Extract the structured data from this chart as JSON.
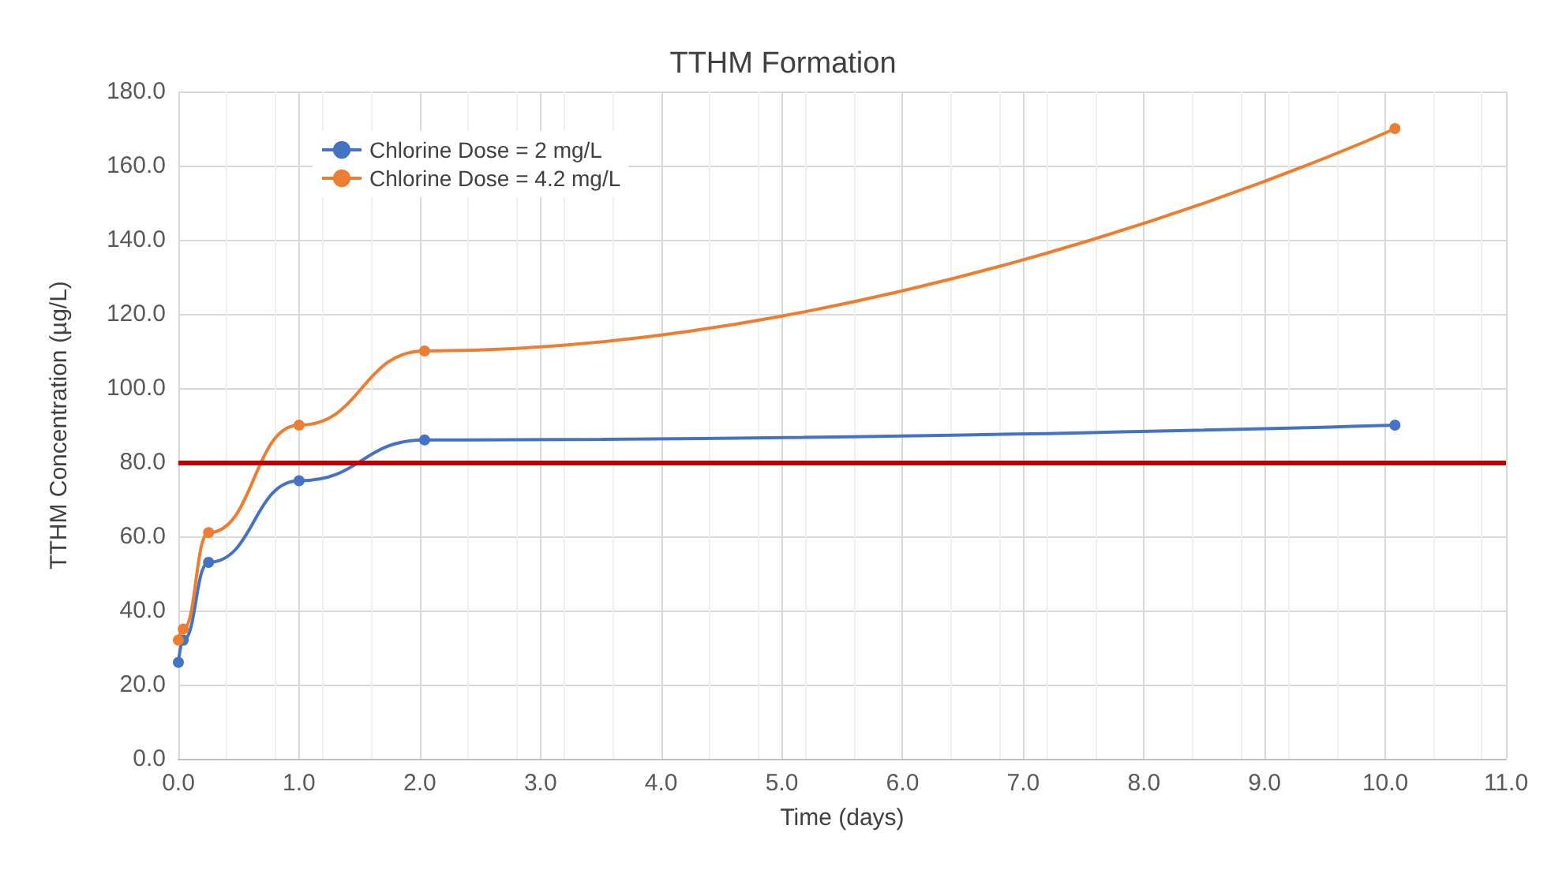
{
  "chart_data": {
    "type": "line",
    "title": "TTHM Formation",
    "xlabel": "Time (days)",
    "ylabel": "TTHM Concentration (µg/L)",
    "series": [
      {
        "name": "Chlorine Dose = 2 mg/L",
        "color": "#4472c4",
        "x": [
          0,
          0.04,
          0.25,
          1.0,
          2.04,
          10.08
        ],
        "values": [
          26,
          32,
          53,
          75,
          86,
          90
        ]
      },
      {
        "name": "Chlorine Dose = 4.2 mg/L",
        "color": "#ed7d31",
        "x": [
          0,
          0.04,
          0.25,
          1.0,
          2.04,
          10.08
        ],
        "values": [
          32,
          35,
          61,
          90,
          110,
          170
        ]
      }
    ],
    "xlim": [
      0,
      11
    ],
    "xticks": [
      {
        "value": 0,
        "label": "0.0"
      },
      {
        "value": 1,
        "label": "1.0"
      },
      {
        "value": 2,
        "label": "2.0"
      },
      {
        "value": 3,
        "label": "3.0"
      },
      {
        "value": 4,
        "label": "4.0"
      },
      {
        "value": 5,
        "label": "5.0"
      },
      {
        "value": 6,
        "label": "6.0"
      },
      {
        "value": 7,
        "label": "7.0"
      },
      {
        "value": 8,
        "label": "8.0"
      },
      {
        "value": 9,
        "label": "9.0"
      },
      {
        "value": 10,
        "label": "10.0"
      },
      {
        "value": 11,
        "label": "11.0"
      }
    ],
    "ylim": [
      0,
      180
    ],
    "yticks": [
      {
        "value": 0,
        "label": "0.0"
      },
      {
        "value": 20,
        "label": "20.0"
      },
      {
        "value": 40,
        "label": "40.0"
      },
      {
        "value": 60,
        "label": "60.0"
      },
      {
        "value": 80,
        "label": "80.0"
      },
      {
        "value": 100,
        "label": "100.0"
      },
      {
        "value": 120,
        "label": "120.0"
      },
      {
        "value": 140,
        "label": "140.0"
      },
      {
        "value": 160,
        "label": "160.0"
      },
      {
        "value": 180,
        "label": "180.0"
      }
    ],
    "ref_lines": [
      {
        "axis": "y",
        "value": 80,
        "color": "#c00000"
      }
    ],
    "grid": true,
    "legend": "top left",
    "marker": "circle",
    "line_style": "solid"
  }
}
